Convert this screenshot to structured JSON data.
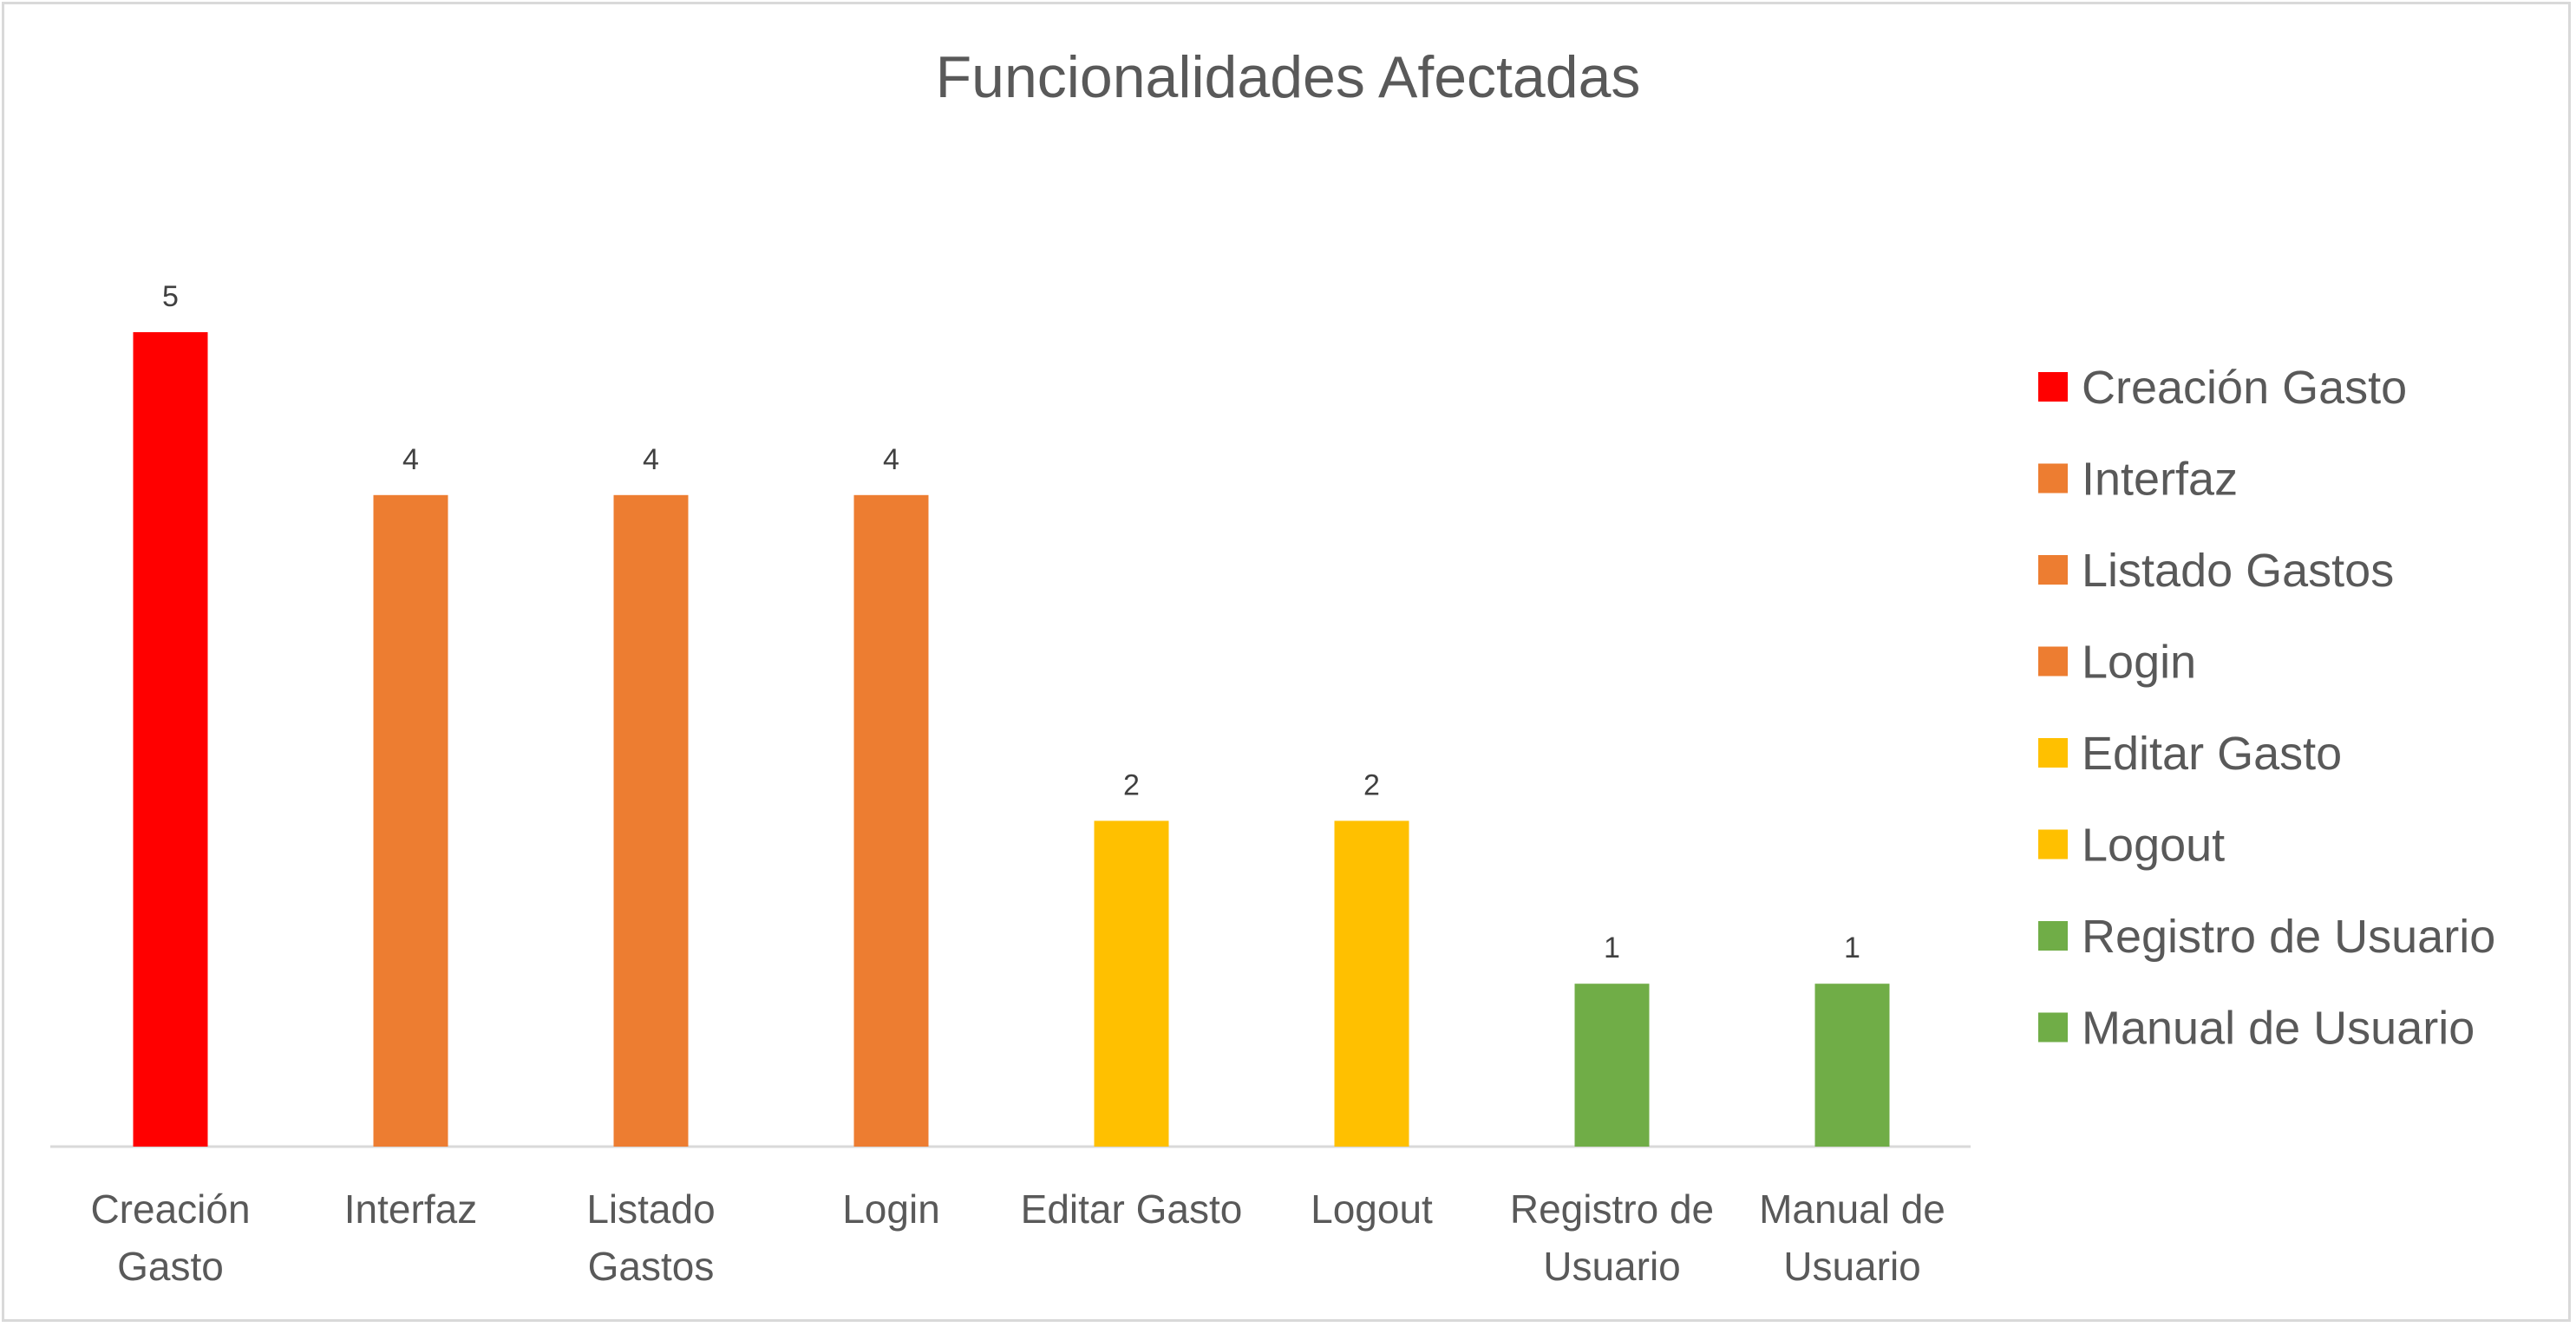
{
  "chart_data": {
    "type": "bar",
    "title": "Funcionalidades Afectadas",
    "categories": [
      "Creación Gasto",
      "Interfaz",
      "Listado Gastos",
      "Login",
      "Editar Gasto",
      "Logout",
      "Registro de Usuario",
      "Manual de Usuario"
    ],
    "category_tick_lines": [
      [
        "Creación",
        "Gasto"
      ],
      [
        "Interfaz"
      ],
      [
        "Listado",
        "Gastos"
      ],
      [
        "Login"
      ],
      [
        "Editar Gasto"
      ],
      [
        "Logout"
      ],
      [
        "Registro de",
        "Usuario"
      ],
      [
        "Manual de",
        "Usuario"
      ]
    ],
    "values": [
      5,
      4,
      4,
      4,
      2,
      2,
      1,
      1
    ],
    "bar_colors": [
      "#ff0000",
      "#ed7d31",
      "#ed7d31",
      "#ed7d31",
      "#ffc000",
      "#ffc000",
      "#70ad47",
      "#70ad47"
    ],
    "data_labels": true,
    "ylim": [
      0,
      5
    ],
    "y_axis_visible": false,
    "grid": false,
    "legend": {
      "position": "right",
      "entries": [
        "Creación Gasto",
        "Interfaz",
        "Listado Gastos",
        "Login",
        "Editar Gasto",
        "Logout",
        "Registro de Usuario",
        "Manual de Usuario"
      ]
    },
    "colors": {
      "axis": "#d9d9d9",
      "text": "#595959",
      "data_label": "#404040",
      "background": "#ffffff"
    }
  }
}
